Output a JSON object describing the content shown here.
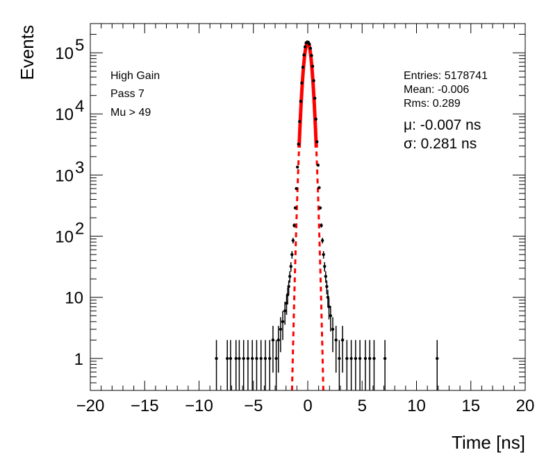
{
  "chart_data": {
    "type": "scatter",
    "title": "",
    "xlabel": "Time [ns]",
    "ylabel": "Events",
    "xlim": [
      -20,
      20
    ],
    "ylim": [
      0.3,
      300000
    ],
    "y_scale": "log",
    "grid": false,
    "x_ticks": [
      -20,
      -15,
      -10,
      -5,
      0,
      5,
      10,
      15,
      20
    ],
    "x_tick_labels": [
      "−20",
      "−15",
      "−10",
      "−5",
      "0",
      "5",
      "10",
      "15",
      "20"
    ],
    "y_ticks": [
      {
        "value": 1,
        "label": "1",
        "exp": ""
      },
      {
        "value": 10,
        "label": "10",
        "exp": ""
      },
      {
        "value": 100,
        "label": "10",
        "exp": "2"
      },
      {
        "value": 1000,
        "label": "10",
        "exp": "3"
      },
      {
        "value": 10000,
        "label": "10",
        "exp": "4"
      },
      {
        "value": 100000,
        "label": "10",
        "exp": "5"
      }
    ],
    "labels_left": [
      "High Gain",
      "Pass 7",
      "Mu > 49"
    ],
    "stats": {
      "entries": "Entries: 5178741",
      "mean": "Mean: -0.006",
      "rms": "Rms: 0.289"
    },
    "fit": {
      "mu_label": "μ: -0.007 ns",
      "sigma_label": "σ: 0.281 ns",
      "mu": -0.007,
      "sigma": 0.281,
      "amplitude": 148000,
      "color": "#ff0000"
    },
    "series": [
      {
        "marker_color": "#000000",
        "x": [
          -8.4,
          -7.4,
          -7.1,
          -6.6,
          -6.3,
          -5.9,
          -5.5,
          -5.1,
          -4.7,
          -4.3,
          -3.9,
          -3.5,
          -3.2,
          -2.9,
          -2.7,
          -2.5,
          -2.3,
          -2.1,
          -1.95,
          -1.85,
          -1.75,
          -1.65,
          -1.55,
          -1.45,
          -1.35,
          -1.25,
          -1.15,
          -1.05,
          -0.95,
          -0.85,
          -0.75,
          -0.65,
          -0.55,
          -0.45,
          -0.35,
          -0.25,
          -0.15,
          -0.05,
          0.05,
          0.15,
          0.25,
          0.35,
          0.45,
          0.55,
          0.65,
          0.75,
          0.85,
          0.95,
          1.05,
          1.15,
          1.25,
          1.35,
          1.45,
          1.55,
          1.65,
          1.75,
          1.85,
          1.95,
          2.1,
          2.3,
          2.6,
          2.9,
          3.2,
          3.6,
          4.0,
          4.4,
          4.8,
          5.3,
          5.7,
          6.1,
          7.1,
          11.9
        ],
        "y": [
          1,
          1,
          1,
          1,
          1,
          1,
          1,
          1,
          1,
          1,
          1,
          1,
          2,
          1,
          2,
          3,
          4,
          6,
          8,
          11,
          15,
          22,
          32,
          50,
          85,
          150,
          290,
          600,
          1350,
          3200,
          7500,
          16000,
          32000,
          58000,
          92000,
          125000,
          145000,
          150000,
          148000,
          138000,
          118000,
          90000,
          60000,
          35000,
          18000,
          8200,
          3500,
          1450,
          620,
          290,
          150,
          85,
          50,
          32,
          22,
          15,
          10,
          7,
          5,
          3,
          2,
          1,
          2,
          1,
          1,
          1,
          1,
          1,
          1,
          1,
          1,
          1
        ]
      }
    ]
  }
}
